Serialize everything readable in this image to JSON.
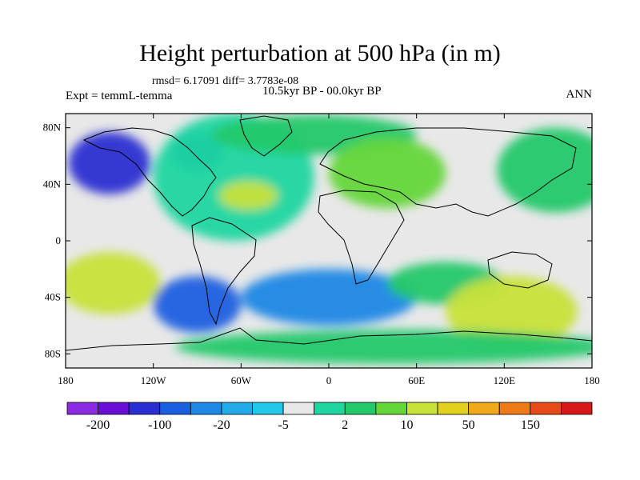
{
  "title": "Height perturbation at 500 hPa (in m)",
  "stats_text": "rmsd= 6.17091 diff= 3.7783e-08",
  "period_text": "10.5kyr BP - 00.0kyr BP",
  "experiment_text": "Expt = temmL-temma",
  "season_text": "ANN",
  "map": {
    "type": "filled-contour-world-map",
    "projection": "cylindrical-equidistant",
    "lon_range": [
      -180,
      180
    ],
    "lat_range": [
      -90,
      90
    ],
    "x_ticks": [
      {
        "lon": -180,
        "label": "180"
      },
      {
        "lon": -120,
        "label": "120W"
      },
      {
        "lon": -60,
        "label": "60W"
      },
      {
        "lon": 0,
        "label": "0"
      },
      {
        "lon": 60,
        "label": "60E"
      },
      {
        "lon": 120,
        "label": "120E"
      },
      {
        "lon": 180,
        "label": "180"
      }
    ],
    "y_ticks": [
      {
        "lat": 80,
        "label": "80N"
      },
      {
        "lat": 40,
        "label": "40N"
      },
      {
        "lat": 0,
        "label": "0"
      },
      {
        "lat": -40,
        "label": "40S"
      },
      {
        "lat": -80,
        "label": "80S"
      }
    ],
    "background_color": "#e8e8e8",
    "anomaly_regions": [
      {
        "lon": -150,
        "lat": 55,
        "rlon": 28,
        "rlat": 22,
        "level": 2
      },
      {
        "lon": -90,
        "lat": 63,
        "rlon": 18,
        "rlat": 14,
        "level": 3
      },
      {
        "lon": -65,
        "lat": 45,
        "rlon": 55,
        "rlat": 45,
        "level": 8
      },
      {
        "lon": -55,
        "lat": 32,
        "rlon": 20,
        "rlat": 10,
        "level": 11
      },
      {
        "lon": -10,
        "lat": 75,
        "rlon": 70,
        "rlat": 14,
        "level": 9
      },
      {
        "lon": 40,
        "lat": 48,
        "rlon": 40,
        "rlat": 25,
        "level": 10
      },
      {
        "lon": 155,
        "lat": 50,
        "rlon": 40,
        "rlat": 30,
        "level": 9
      },
      {
        "lon": -150,
        "lat": -30,
        "rlon": 35,
        "rlat": 22,
        "level": 11
      },
      {
        "lon": -90,
        "lat": -45,
        "rlon": 30,
        "rlat": 20,
        "level": 3
      },
      {
        "lon": 0,
        "lat": -40,
        "rlon": 60,
        "rlat": 20,
        "level": 4
      },
      {
        "lon": 80,
        "lat": -30,
        "rlon": 40,
        "rlat": 15,
        "level": 9
      },
      {
        "lon": 125,
        "lat": -50,
        "rlon": 45,
        "rlat": 25,
        "level": 11
      },
      {
        "lon": 45,
        "lat": -75,
        "rlon": 150,
        "rlat": 12,
        "level": 9
      }
    ]
  },
  "colorbar": {
    "colors": [
      "#8a2be2",
      "#6a0dd6",
      "#2a2fd1",
      "#1a5fe0",
      "#1f88e5",
      "#23aae8",
      "#23c8e8",
      "#e8e8e8",
      "#1fd6a0",
      "#22c86a",
      "#64d63a",
      "#c8e23a",
      "#e2d01c",
      "#f0a81c",
      "#ee7a18",
      "#e84a18",
      "#d81818"
    ],
    "labels": [
      "-200",
      "-100",
      "-20",
      "-5",
      "2",
      "10",
      "50",
      "150"
    ]
  }
}
